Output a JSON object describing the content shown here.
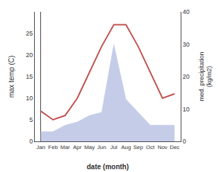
{
  "chart_data": {
    "type": "line",
    "categories": [
      "Jan",
      "Feb",
      "Mar",
      "Apr",
      "May",
      "Jun",
      "Jul",
      "Aug",
      "Sep",
      "Oct",
      "Nov",
      "Dec"
    ],
    "xlabel": "date (month)",
    "ylabel": "max temp (C)",
    "y2label": "med. precipitation\n(kg/m2)",
    "series": [
      {
        "type": "area",
        "axis": "y2",
        "color": "#c5cce8",
        "values": [
          3,
          3,
          5,
          6,
          8,
          9,
          30,
          13,
          9,
          5,
          5,
          5
        ]
      },
      {
        "type": "line",
        "color": "#c0504d",
        "values": [
          7,
          5,
          6,
          10,
          16,
          22,
          27,
          27,
          22,
          16,
          10,
          11
        ]
      }
    ],
    "ylim": [
      0,
      30
    ],
    "yticks": [
      0,
      5,
      10,
      15,
      20,
      25
    ],
    "y2lim": [
      0,
      40
    ],
    "y2ticks": [
      0,
      10,
      20,
      30,
      40
    ],
    "grid": false
  }
}
